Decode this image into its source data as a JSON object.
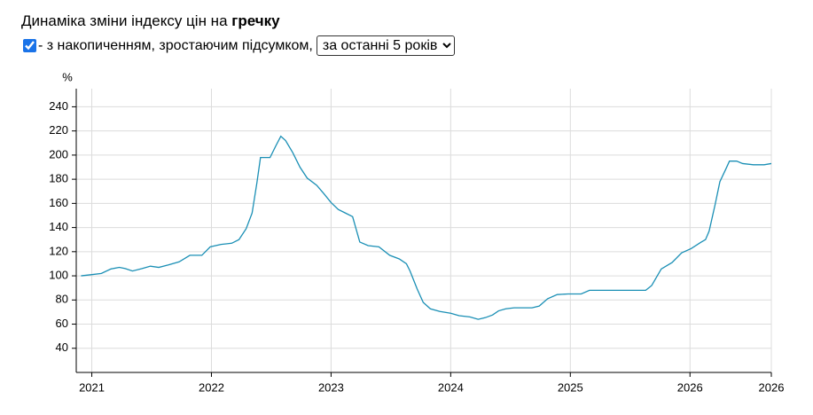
{
  "header": {
    "title": "Динаміка зміни індексу цін на",
    "product": "гречку",
    "checkbox_label": "- з накопиченням, зростаючим підсумком,",
    "period": "за останні 5 років"
  },
  "chart_data": {
    "type": "line",
    "y_label": "%",
    "color": "#1a8fb5",
    "grid": true,
    "x": [
      2020.91,
      2021.0,
      2021.08,
      2021.16,
      2021.23,
      2021.28,
      2021.34,
      2021.42,
      2021.49,
      2021.56,
      2021.64,
      2021.73,
      2021.82,
      2021.92,
      2021.99,
      2022.08,
      2022.17,
      2022.23,
      2022.29,
      2022.34,
      2022.38,
      2022.41,
      2022.49,
      2022.54,
      2022.58,
      2022.62,
      2022.68,
      2022.74,
      2022.8,
      2022.88,
      2022.94,
      2023.0,
      2023.06,
      2023.12,
      2023.18,
      2023.24,
      2023.31,
      2023.4,
      2023.49,
      2023.57,
      2023.63,
      2023.66,
      2023.72,
      2023.77,
      2023.83,
      2023.91,
      2024.0,
      2024.07,
      2024.16,
      2024.23,
      2024.29,
      2024.35,
      2024.4,
      2024.46,
      2024.53,
      2024.68,
      2024.74,
      2024.81,
      2024.89,
      2024.98,
      2025.09,
      2025.16,
      2025.35,
      2025.5,
      2025.63,
      2025.68,
      2025.76,
      2025.85,
      2025.93,
      2026.01,
      2026.09,
      2026.13,
      2026.16,
      2026.21,
      2026.25,
      2026.3,
      2026.33,
      2026.39,
      2026.44,
      2026.53,
      2026.62,
      2026.68
    ],
    "values": [
      100,
      101,
      102,
      105.7,
      107,
      106,
      104,
      106,
      108,
      107,
      109,
      111.6,
      117,
      117,
      124,
      126,
      127,
      130,
      139,
      152,
      177,
      198,
      198,
      208,
      215.6,
      212,
      202,
      190,
      181,
      175,
      168,
      160.7,
      155,
      152,
      149,
      128,
      125,
      124,
      117,
      114,
      110,
      104,
      89,
      78,
      72.7,
      70.5,
      69,
      67,
      66,
      64,
      65.4,
      67.6,
      71,
      72.7,
      73.5,
      73.5,
      75,
      81,
      84.5,
      85,
      85,
      88,
      88,
      88,
      88,
      92,
      105.7,
      111,
      119,
      122.6,
      127.7,
      130,
      137,
      159,
      178,
      188.5,
      195,
      195,
      193,
      192,
      192,
      193
    ],
    "xlim": [
      2020.87,
      2026.68
    ],
    "xticks": [
      2021,
      2022,
      2023,
      2024,
      2025,
      2026,
      {
        "value": 2026.68,
        "label": "2026"
      }
    ],
    "ylim": [
      20,
      255
    ],
    "yticks": [
      40,
      60,
      80,
      100,
      120,
      140,
      160,
      180,
      200,
      220,
      240
    ]
  }
}
